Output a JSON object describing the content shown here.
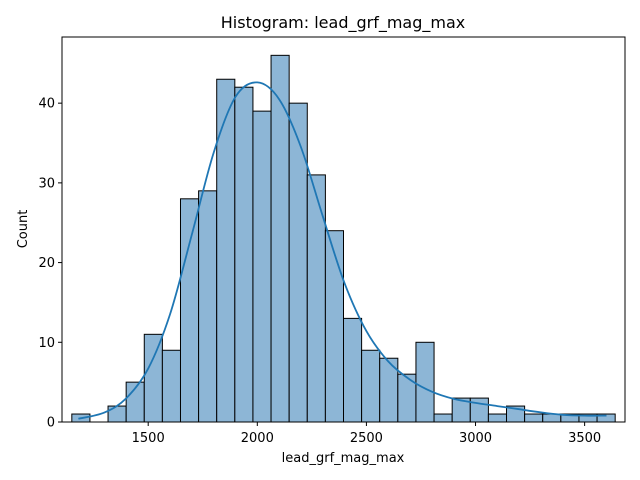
{
  "chart_data": {
    "type": "bar",
    "title": "Histogram: lead_grf_mag_max",
    "xlabel": "lead_grf_mag_max",
    "ylabel": "Count",
    "xlim": [
      1105,
      3685
    ],
    "ylim": [
      0,
      48.3
    ],
    "xticks": [
      1500,
      2000,
      2500,
      3000,
      3500
    ],
    "yticks": [
      0,
      10,
      20,
      30,
      40
    ],
    "bins": {
      "start": 1150,
      "width": 83,
      "counts": [
        1,
        0,
        2,
        5,
        11,
        9,
        28,
        29,
        43,
        42,
        39,
        46,
        40,
        31,
        24,
        13,
        9,
        8,
        6,
        10,
        1,
        3,
        3,
        1,
        2,
        1,
        1,
        1,
        1,
        1
      ]
    },
    "kde": {
      "x": [
        1180,
        1300,
        1400,
        1500,
        1600,
        1700,
        1800,
        1900,
        2000,
        2100,
        2200,
        2300,
        2400,
        2500,
        2600,
        2700,
        2800,
        2900,
        3000,
        3100,
        3200,
        3300,
        3400,
        3500,
        3600
      ],
      "y": [
        0.4,
        1.2,
        3.0,
        6.7,
        13.5,
        23.5,
        33.8,
        40.8,
        42.6,
        40.5,
        34.5,
        25.8,
        17.4,
        11.4,
        7.6,
        5.3,
        3.8,
        2.9,
        2.4,
        2.0,
        1.6,
        1.2,
        0.9,
        0.8,
        0.8
      ]
    },
    "colors": {
      "bar_fill": "#8db6d6",
      "bar_edge": "#000000",
      "kde_line": "#1f77b4"
    },
    "grid": false,
    "legend": "none"
  }
}
